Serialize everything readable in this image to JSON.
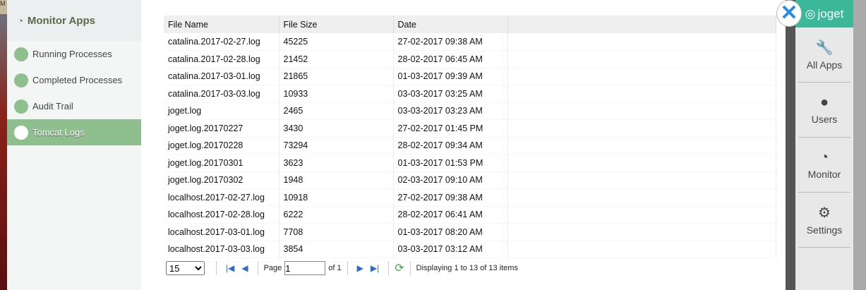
{
  "sidebar": {
    "title": "Monitor Apps",
    "icon": "dashboard-icon",
    "items": [
      {
        "label": "Running Processes"
      },
      {
        "label": "Completed Processes"
      },
      {
        "label": "Audit Trail"
      },
      {
        "label": "Tomcat Logs",
        "active": true
      }
    ]
  },
  "table": {
    "headers": [
      "File Name",
      "File Size",
      "Date"
    ],
    "rows": [
      [
        "catalina.2017-02-27.log",
        "45225",
        "27-02-2017 09:38 AM"
      ],
      [
        "catalina.2017-02-28.log",
        "21452",
        "28-02-2017 06:45 AM"
      ],
      [
        "catalina.2017-03-01.log",
        "21865",
        "01-03-2017 09:39 AM"
      ],
      [
        "catalina.2017-03-03.log",
        "10933",
        "03-03-2017 03:25 AM"
      ],
      [
        "joget.log",
        "2465",
        "03-03-2017 03:23 AM"
      ],
      [
        "joget.log.20170227",
        "3430",
        "27-02-2017 01:45 PM"
      ],
      [
        "joget.log.20170228",
        "73294",
        "28-02-2017 09:34 AM"
      ],
      [
        "joget.log.20170301",
        "3623",
        "01-03-2017 01:53 PM"
      ],
      [
        "joget.log.20170302",
        "1948",
        "02-03-2017 09:10 AM"
      ],
      [
        "localhost.2017-02-27.log",
        "10918",
        "27-02-2017 09:38 AM"
      ],
      [
        "localhost.2017-02-28.log",
        "6222",
        "28-02-2017 06:41 AM"
      ],
      [
        "localhost.2017-03-01.log",
        "7708",
        "01-03-2017 08:20 AM"
      ],
      [
        "localhost.2017-03-03.log",
        "3854",
        "03-03-2017 03:12 AM"
      ]
    ]
  },
  "pager": {
    "page_size": "15",
    "page_label": "Page",
    "page": "1",
    "of_label": "of 1",
    "status": "Displaying 1 to 13 of 13 items"
  },
  "nav": {
    "logo": "joget",
    "items": [
      {
        "label": "All Apps",
        "icon": "wrench-icon"
      },
      {
        "label": "Users",
        "icon": "user-icon"
      },
      {
        "label": "Monitor",
        "icon": "dashboard-icon"
      },
      {
        "label": "Settings",
        "icon": "gears-icon"
      }
    ]
  },
  "bg_label": "M",
  "colors": {
    "accent": "#8fbf8f",
    "brand": "#3bb89a",
    "close": "#2a8ae8"
  }
}
